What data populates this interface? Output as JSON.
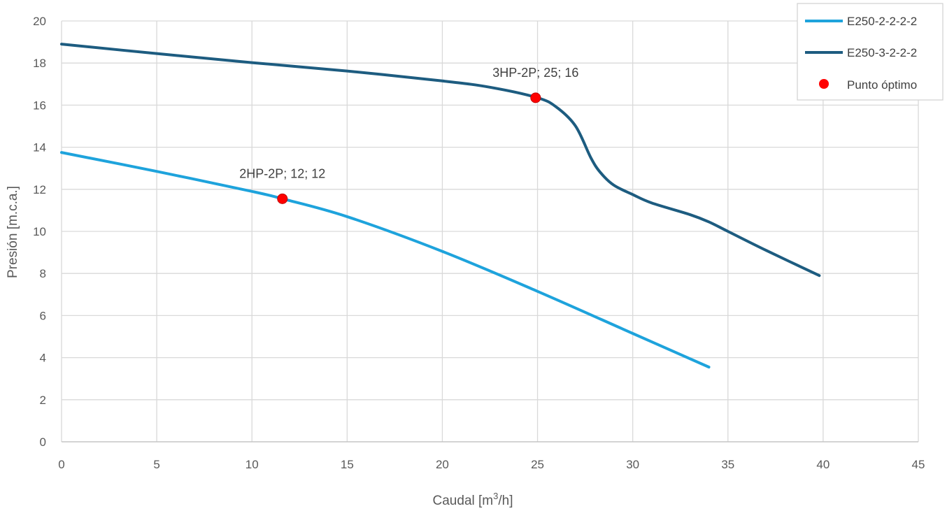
{
  "chart_data": {
    "type": "line",
    "xlabel": "Caudal [m",
    "xlabel_sup": "3",
    "xlabel_tail": "/h]",
    "ylabel": "Presión [m.c.a.]",
    "xlim": [
      0,
      45
    ],
    "ylim": [
      0,
      20
    ],
    "x_ticks": [
      0,
      5,
      10,
      15,
      20,
      25,
      30,
      35,
      40,
      45
    ],
    "y_ticks": [
      0,
      2,
      4,
      6,
      8,
      10,
      12,
      14,
      16,
      18,
      20
    ],
    "grid": true,
    "legend_position": "top-right",
    "series": [
      {
        "name": "E250-2-2-2-2",
        "color": "#1ea3dc",
        "points": [
          [
            0,
            13.75
          ],
          [
            5,
            12.85
          ],
          [
            10,
            11.9
          ],
          [
            11.6,
            11.55
          ],
          [
            15,
            10.7
          ],
          [
            20,
            9.05
          ],
          [
            25,
            7.15
          ],
          [
            30,
            5.15
          ],
          [
            34,
            3.55
          ]
        ]
      },
      {
        "name": "E250-3-2-2-2",
        "color": "#1d5c80",
        "points": [
          [
            0,
            18.9
          ],
          [
            5,
            18.45
          ],
          [
            10,
            18.02
          ],
          [
            15,
            17.62
          ],
          [
            20,
            17.15
          ],
          [
            22.5,
            16.85
          ],
          [
            25,
            16.35
          ],
          [
            26,
            15.9
          ],
          [
            27,
            15.0
          ],
          [
            27.8,
            13.5
          ],
          [
            28.3,
            12.8
          ],
          [
            29,
            12.2
          ],
          [
            30,
            11.75
          ],
          [
            31,
            11.35
          ],
          [
            33,
            10.8
          ],
          [
            34,
            10.45
          ],
          [
            35,
            10.0
          ],
          [
            37,
            9.1
          ],
          [
            39.8,
            7.9
          ]
        ]
      }
    ],
    "markers": {
      "name": "Punto óptimo",
      "color": "#ff0000",
      "points": [
        {
          "x": 11.6,
          "y": 11.55,
          "label": "2HP-2P; 12; 12"
        },
        {
          "x": 24.9,
          "y": 16.35,
          "label": "3HP-2P; 25; 16"
        }
      ]
    }
  }
}
